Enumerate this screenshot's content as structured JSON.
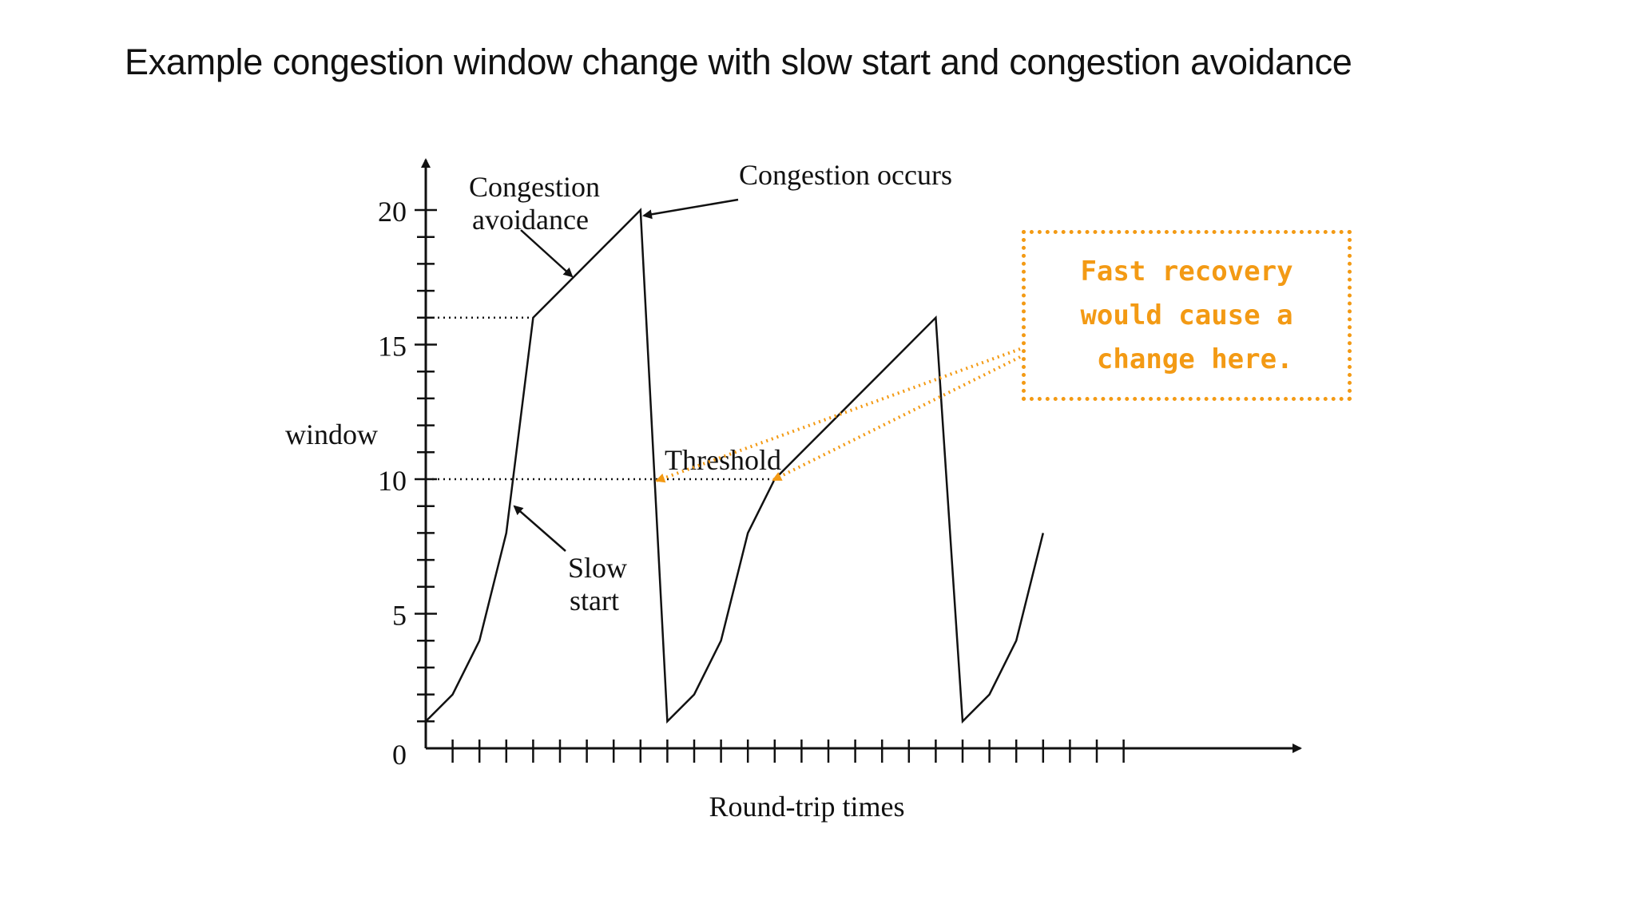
{
  "slide": {
    "title": "Example congestion window change with slow start and congestion avoidance"
  },
  "chart_data": {
    "type": "line",
    "xlabel": "Round-trip times",
    "ylabel": "window",
    "y_ticks": [
      "0",
      "5",
      "10",
      "15",
      "20"
    ],
    "ylim": [
      0,
      21
    ],
    "xlim": [
      0,
      32
    ],
    "threshold": 10,
    "series": [
      {
        "x": [
          0,
          1,
          2,
          3,
          4,
          5,
          6,
          7,
          8,
          9,
          10,
          11,
          12,
          13,
          14,
          15,
          16,
          17,
          18,
          19,
          20,
          21,
          22,
          23,
          24,
          25
        ],
        "y": [
          1,
          2,
          4,
          8,
          16,
          17,
          18,
          19,
          20,
          1,
          2,
          4,
          8,
          10,
          11,
          12,
          13,
          14,
          15,
          16,
          1,
          2,
          4,
          8,
          null,
          null
        ]
      }
    ],
    "annotations": [
      {
        "text": [
          "Congestion",
          "avoidance"
        ]
      },
      {
        "text": [
          "Congestion occurs"
        ]
      },
      {
        "text": [
          "Threshold"
        ]
      },
      {
        "text": [
          "Slow",
          "start"
        ]
      }
    ],
    "colors": {
      "line": "#111111",
      "note": "#f39a14"
    }
  },
  "note": {
    "lines": [
      "Fast recovery",
      "would cause a",
      " change here."
    ]
  }
}
